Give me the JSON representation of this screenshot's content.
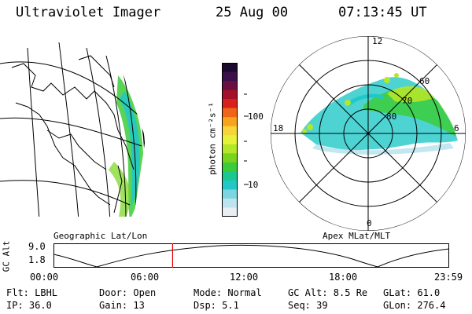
{
  "header": {
    "title": "Ultraviolet Imager",
    "date": "25 Aug 00",
    "time": "07:13:45 UT"
  },
  "geo_panel": {
    "label": "Geographic Lat/Lon"
  },
  "polar_panel": {
    "label": "Apex MLat/MLT",
    "mlt_labels": [
      "12",
      "18",
      "6",
      "0"
    ],
    "mlat_labels": [
      "60",
      "70",
      "80"
    ]
  },
  "colorbar": {
    "unit_label": "photon cm⁻²s⁻¹",
    "ticks": [
      "100",
      "10"
    ],
    "colors": [
      "#1a0a2e",
      "#3a0f4a",
      "#6a1040",
      "#a3102a",
      "#d8201c",
      "#f06418",
      "#f7a41c",
      "#f7d43a",
      "#e6f23a",
      "#b4e62a",
      "#78d41c",
      "#3ccc3a",
      "#1cc890",
      "#22c8c8",
      "#7cd6e0",
      "#bde4ee",
      "#e8eef2"
    ]
  },
  "timeline": {
    "ylabel": "GC Alt",
    "yticks": [
      "9.0",
      "1.8"
    ],
    "xticks": [
      "00:00",
      "06:00",
      "12:00",
      "18:00",
      "23:59"
    ],
    "current_fraction": 0.301
  },
  "info": {
    "flt": "Flt: LBHL",
    "door": "Door: Open",
    "mode": "Mode: Normal",
    "gcalt": "GC Alt: 8.5 Re",
    "glat": "GLat:  61.0",
    "ip": "IP: 36.0",
    "gain": "Gain: 13",
    "dsp": "Dsp:    5.1",
    "seq": "Seq: 39",
    "glon": "GLon: 276.4"
  }
}
